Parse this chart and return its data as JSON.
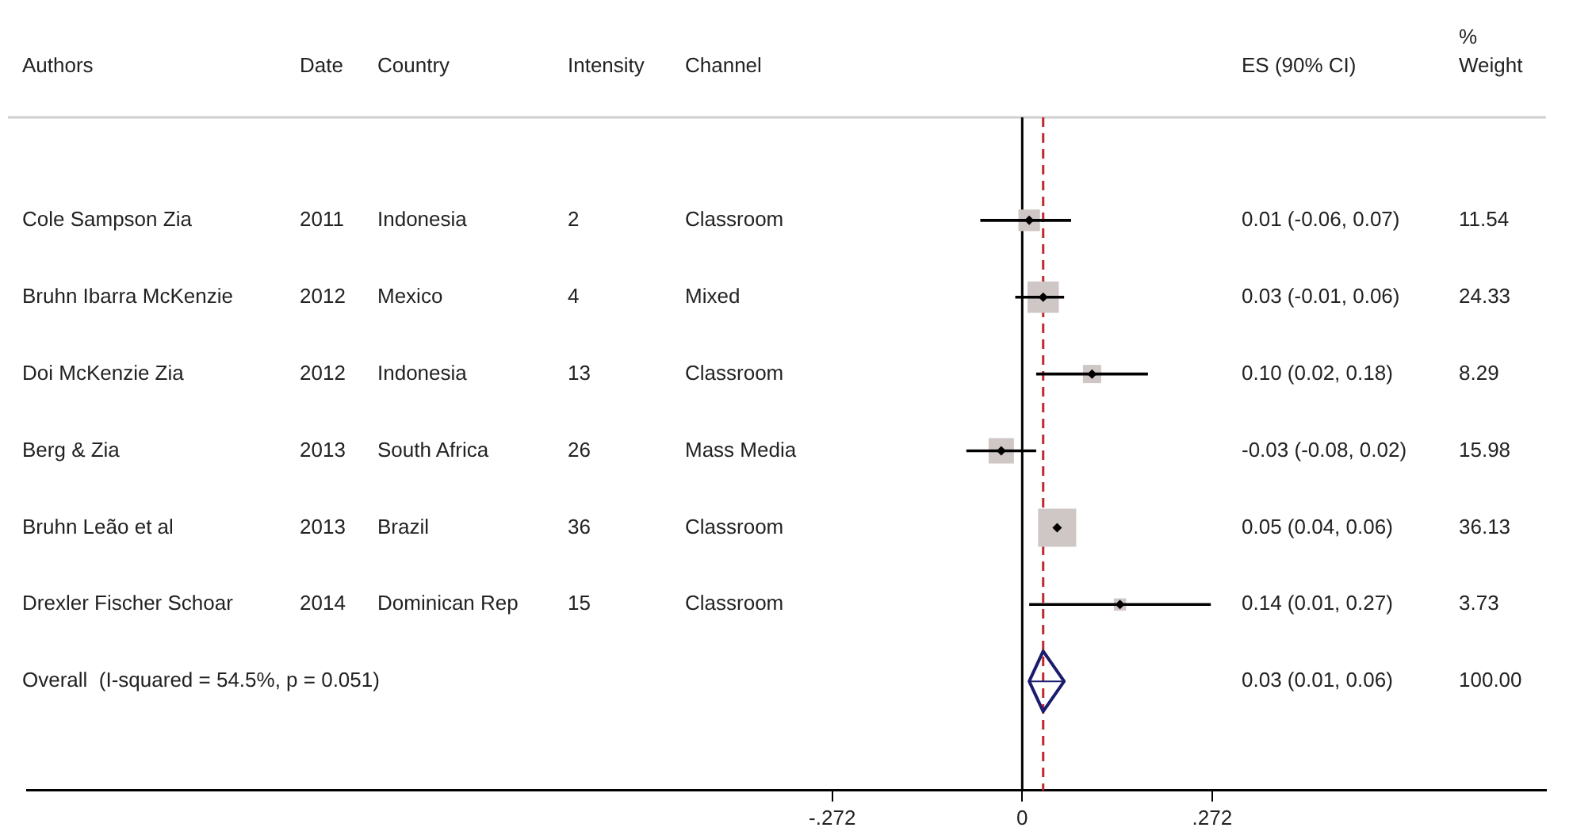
{
  "chart_data": {
    "type": "scatter",
    "orientation": "horizontal",
    "ylabel": "Authors",
    "categories": [
      "Cole Sampson Zia",
      "Bruhn Ibarra McKenzie",
      "Doi McKenzie Zia",
      "Berg & Zia",
      "Bruhn Leão et al",
      "Drexler Fischer Schoar",
      "Overall  (I-squared = 54.5%, p = 0.051)"
    ],
    "series": [
      {
        "type": "bubble",
        "marker": "square",
        "color": "#cfc6c6",
        "values": [
          0.01,
          0.03,
          0.1,
          -0.03,
          0.05,
          0.14,
          null
        ],
        "sizes": [
          0.319,
          0.673,
          0.229,
          0.442,
          1,
          0.103,
          null
        ]
      },
      {
        "type": "scatter",
        "marker": "diamond",
        "color": "#000000",
        "values": [
          0.01,
          0.03,
          0.1,
          -0.03,
          0.05,
          0.14,
          null
        ],
        "errors": [
          [
            -0.06,
            0.07
          ],
          [
            -0.01,
            0.06
          ],
          [
            0.02,
            0.18
          ],
          [
            -0.08,
            0.02
          ],
          null,
          [
            0.01,
            0.27
          ],
          null
        ]
      },
      {
        "type": "scatter",
        "marker": "diamond",
        "color": "#1c1c6e",
        "values": [
          null,
          null,
          null,
          null,
          null,
          null,
          0.03
        ],
        "errors": [
          null,
          null,
          null,
          null,
          null,
          null,
          [
            0.01,
            0.06
          ]
        ]
      }
    ],
    "xlim": [
      -1.425,
      0.75
    ],
    "xticks": [
      {
        "value": -0.272,
        "label": "-.272"
      },
      0,
      {
        "value": 0.272,
        "label": ".272"
      }
    ],
    "tick_labels": "x",
    "ref_lines": [
      {
        "axis": "x",
        "value": 0,
        "color": "#000000"
      },
      {
        "axis": "x",
        "value": 0.03,
        "color": "#c0282e",
        "line_style": "dashed"
      }
    ],
    "annotations": [
      "Date",
      "Country",
      "Intensity",
      "Channel",
      "ES (90% CI)",
      "% Weight",
      "2011",
      "Indonesia",
      "2",
      "Classroom",
      "0.01 (-0.06, 0.07)",
      "11.54",
      "2012",
      "Mexico",
      "4",
      "Mixed",
      "0.03 (-0.01, 0.06)",
      "24.33",
      "2012",
      "Indonesia",
      "13",
      "Classroom",
      "0.10 (0.02, 0.18)",
      "8.29",
      "2013",
      "South Africa",
      "26",
      "Mass Media",
      "-0.03 (-0.08, 0.02)",
      "15.98",
      "2013",
      "Brazil",
      "36",
      "Classroom",
      "0.05 (0.04, 0.06)",
      "36.13",
      "2014",
      "Dominican Rep",
      "15",
      "Classroom",
      "0.14 (0.01, 0.27)",
      "3.73",
      "0.03 (0.01, 0.06)",
      "100.00"
    ]
  }
}
